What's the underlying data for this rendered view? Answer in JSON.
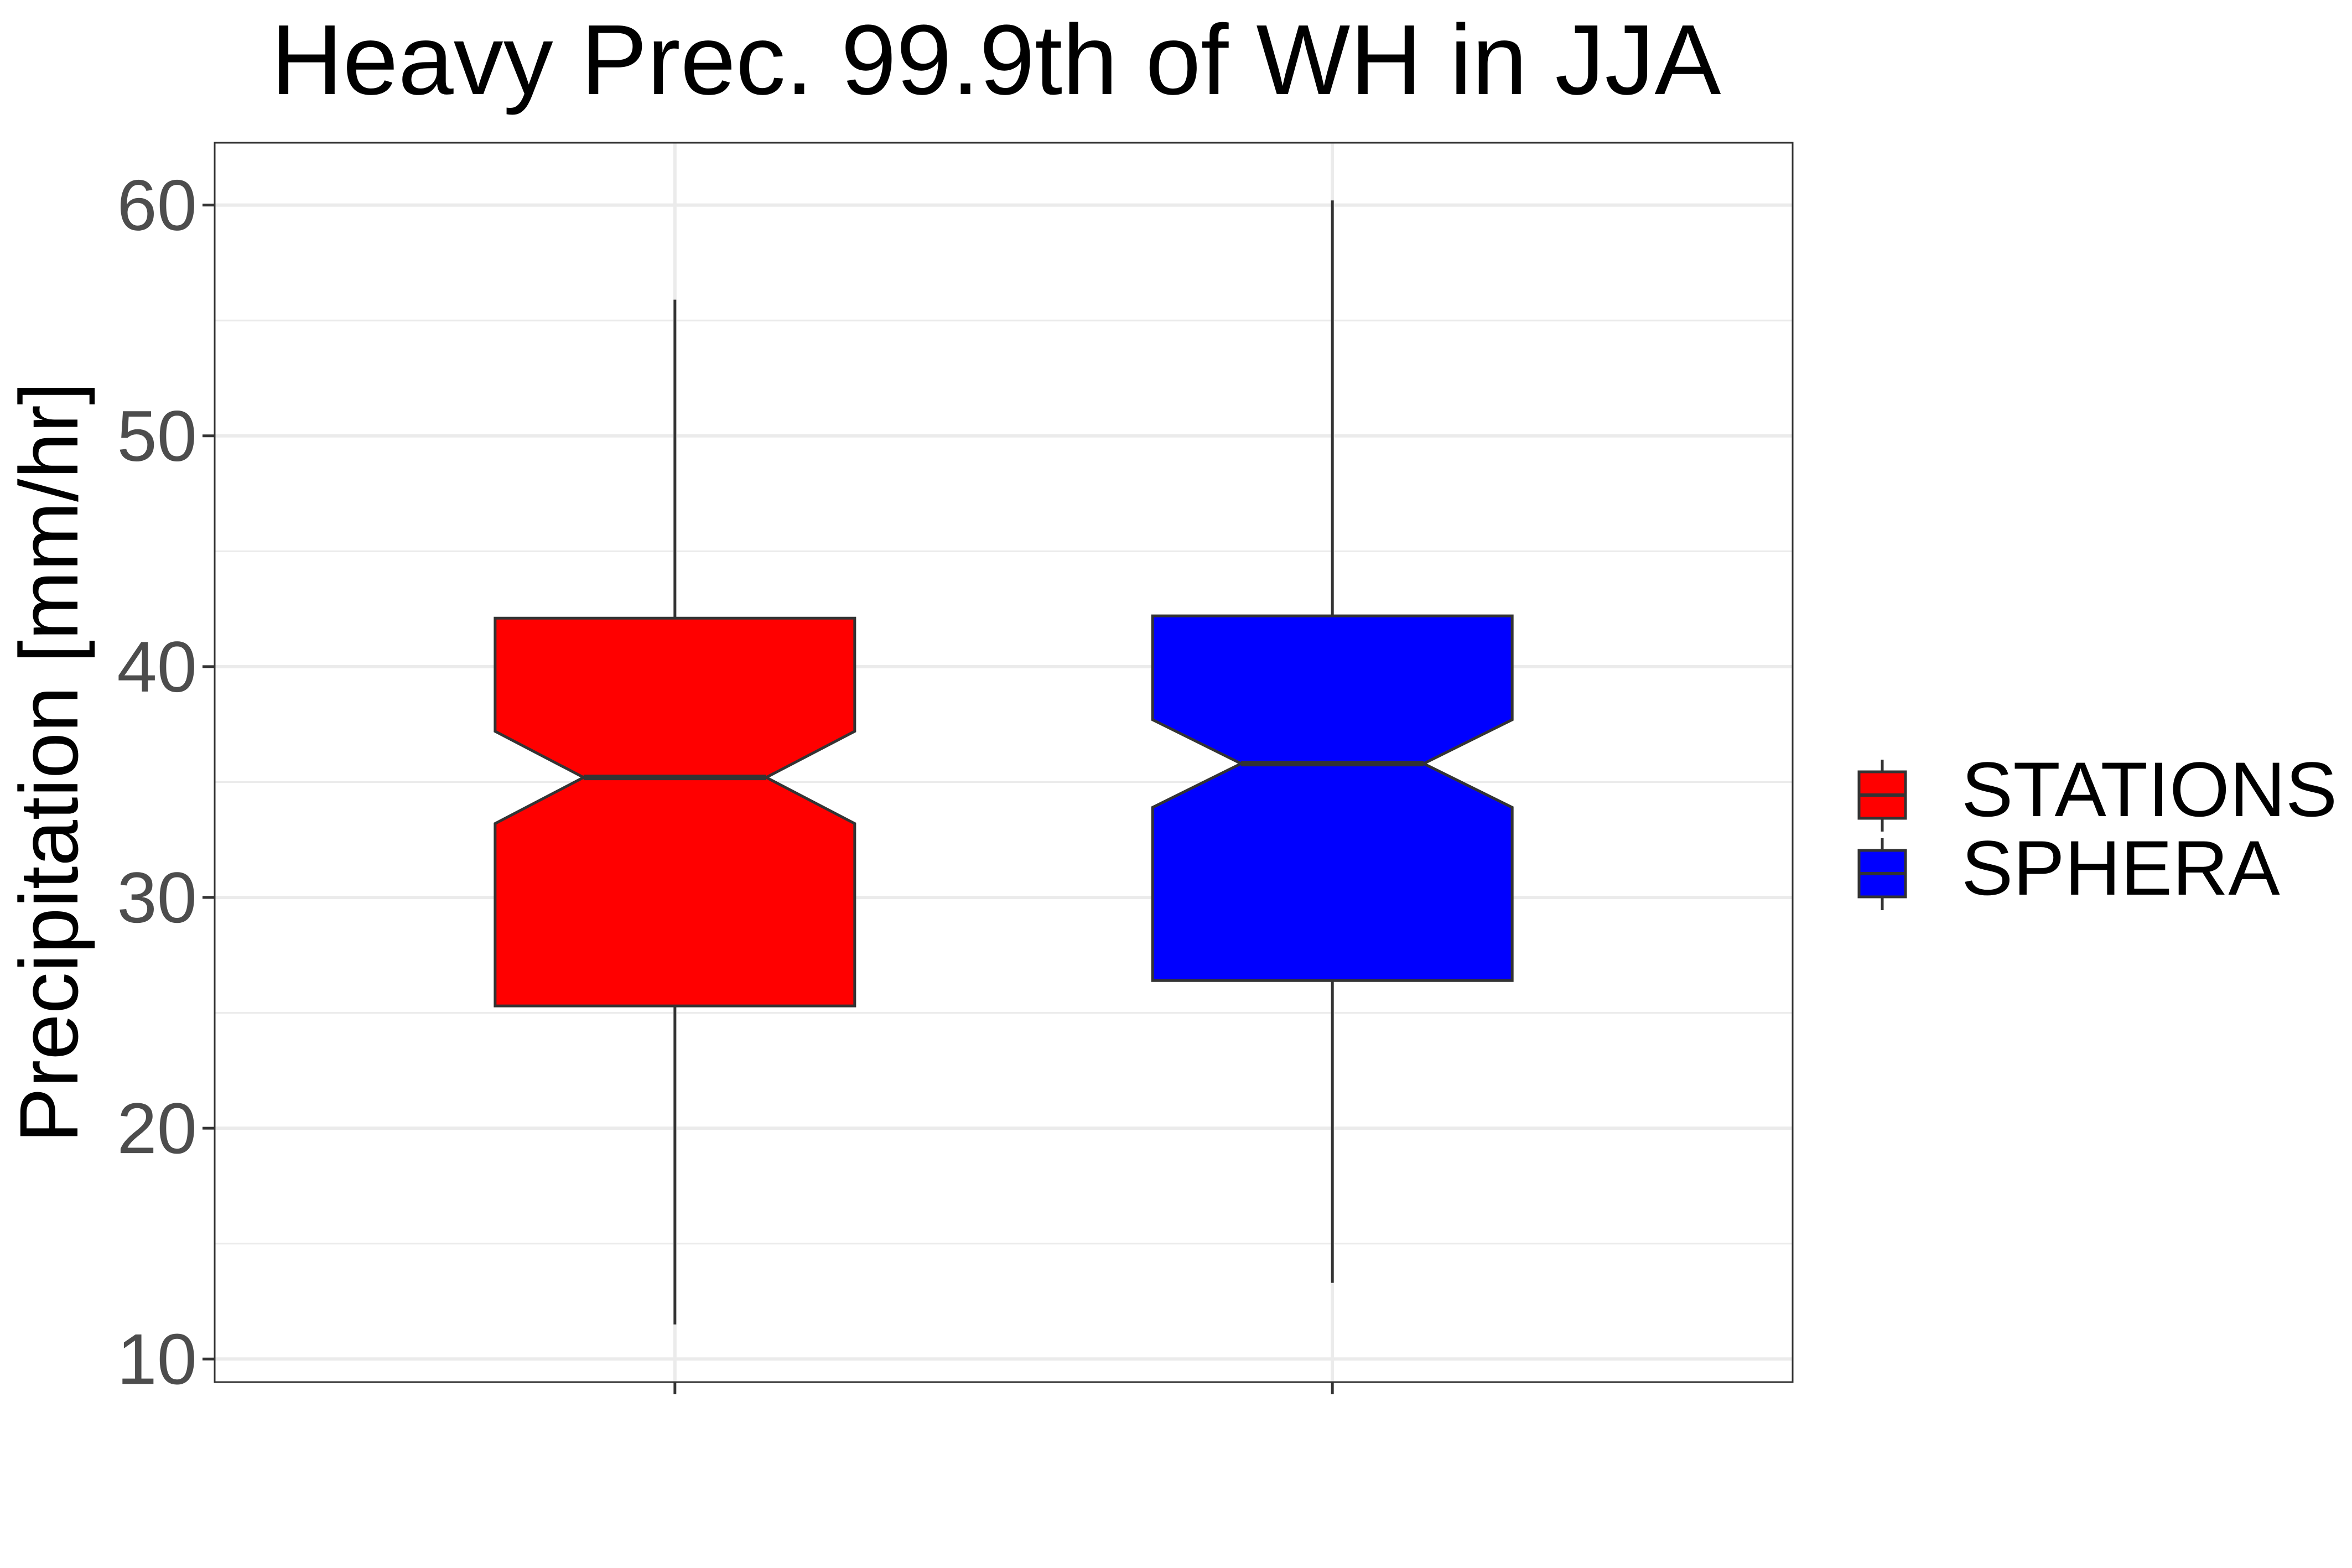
{
  "chart_data": {
    "type": "boxplot",
    "title": "Heavy Prec. 99.9th of WH in JJA",
    "xlabel": "",
    "ylabel": "Precipitation [mm/hr]",
    "ylim": [
      9,
      62.7
    ],
    "yticks": [
      10,
      20,
      30,
      40,
      50,
      60
    ],
    "notched": true,
    "grid": true,
    "legend_position": "right",
    "series": [
      {
        "name": "STATIONS",
        "color": "#ff0000",
        "min": 11.5,
        "q1": 25.3,
        "median": 35.2,
        "q3": 42.1,
        "max": 55.9,
        "notch_low": 33.2,
        "notch_high": 37.2
      },
      {
        "name": "SPHERA",
        "color": "#0000ff",
        "min": 13.3,
        "q1": 26.4,
        "median": 35.8,
        "q3": 42.2,
        "max": 60.2,
        "notch_low": 33.9,
        "notch_high": 37.7
      }
    ]
  }
}
